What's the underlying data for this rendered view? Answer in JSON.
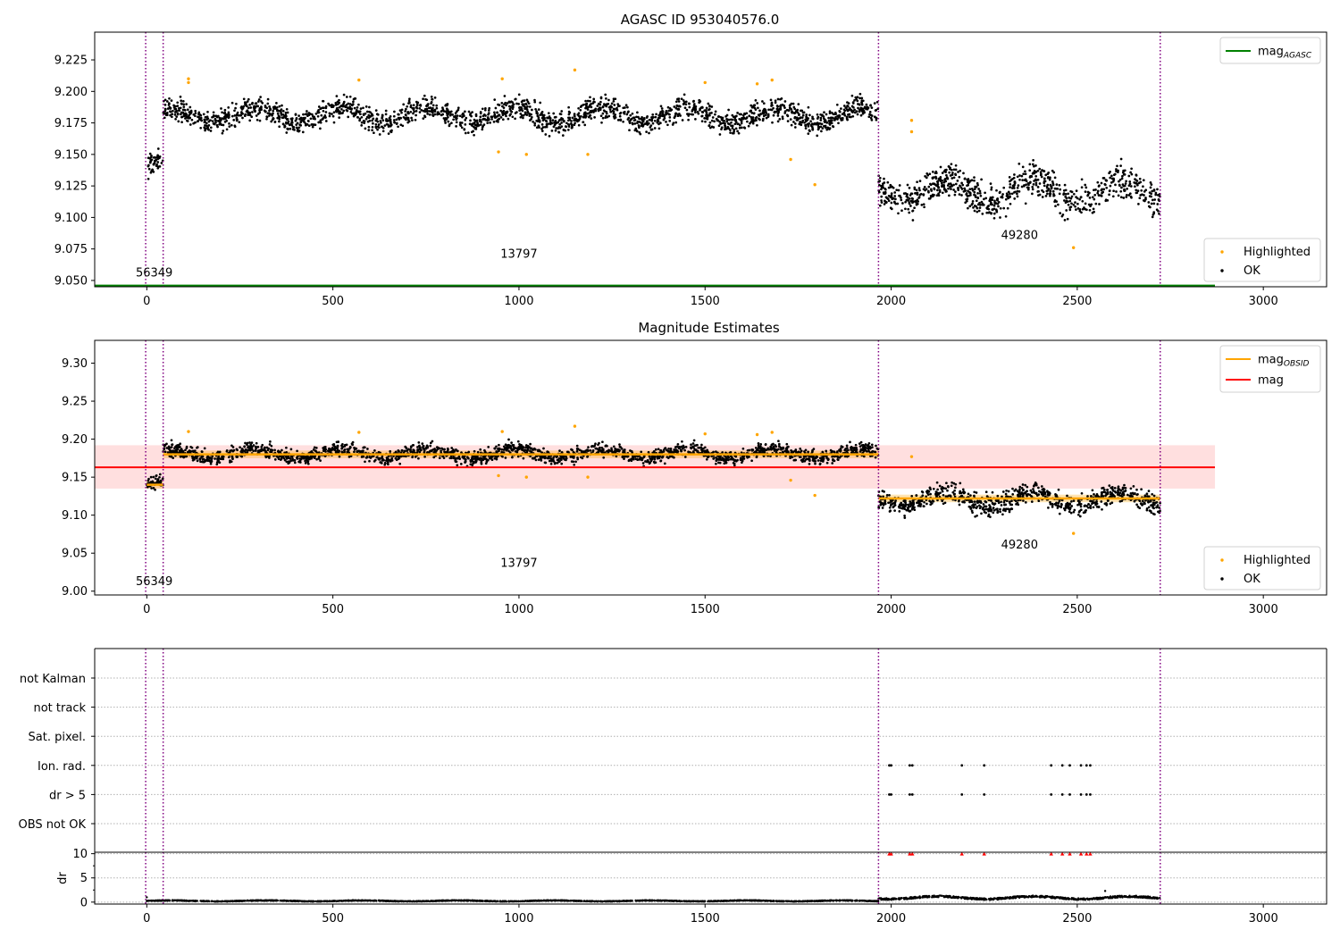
{
  "chart_data": [
    {
      "id": "agasc",
      "type": "scatter",
      "title": "AGASC ID 953040576.0",
      "xlim": [
        -140,
        3170
      ],
      "ylim": [
        9.045,
        9.247
      ],
      "xticks": [
        0,
        500,
        1000,
        1500,
        2000,
        2500,
        3000
      ],
      "xtick_labels": [
        "0",
        "500",
        "1000",
        "1500",
        "2000",
        "2500",
        "3000"
      ],
      "yticks": [
        9.05,
        9.075,
        9.1,
        9.125,
        9.15,
        9.175,
        9.2,
        9.225
      ],
      "ytick_labels": [
        "9.050",
        "9.075",
        "9.100",
        "9.125",
        "9.150",
        "9.175",
        "9.200",
        "9.225"
      ],
      "obs_boundaries": [
        -3,
        44,
        1966,
        2723
      ],
      "obs_labels": [
        {
          "text": "56349",
          "x": 20,
          "y": 9.053
        },
        {
          "text": "13797",
          "x": 1000,
          "y": 9.068
        },
        {
          "text": "49280",
          "x": 2345,
          "y": 9.083
        }
      ],
      "lines": [
        {
          "name": "mag_AGASC",
          "color": "#008000",
          "value": 9.046,
          "x0": -140,
          "x1": 2870
        }
      ],
      "segments": [
        {
          "x0": 0,
          "x1": 44,
          "center": 9.14,
          "spread": 0.01
        },
        {
          "x0": 44,
          "x1": 1966,
          "center": 9.181,
          "spread": 0.01
        },
        {
          "x0": 1966,
          "x1": 2723,
          "center": 9.121,
          "spread": 0.015
        }
      ],
      "highlighted": [
        [
          112,
          9.21
        ],
        [
          112,
          9.207
        ],
        [
          570,
          9.209
        ],
        [
          945,
          9.152
        ],
        [
          955,
          9.21
        ],
        [
          1020,
          9.15
        ],
        [
          1150,
          9.217
        ],
        [
          1185,
          9.15
        ],
        [
          1500,
          9.207
        ],
        [
          1640,
          9.206
        ],
        [
          1680,
          9.209
        ],
        [
          1730,
          9.146
        ],
        [
          1795,
          9.126
        ],
        [
          2055,
          9.177
        ],
        [
          2055,
          9.168
        ],
        [
          2490,
          9.076
        ]
      ],
      "legend": {
        "position": "upper-right and lower-right",
        "line_entries": [
          {
            "base": "mag",
            "sub": "AGASC",
            "color": "#008000"
          }
        ],
        "marker_entries": [
          {
            "label": "Highlighted",
            "color": "#ffa500"
          },
          {
            "label": "OK",
            "color": "#000000"
          }
        ]
      }
    },
    {
      "id": "magnitude",
      "type": "scatter",
      "title": "Magnitude Estimates",
      "xlim": [
        -140,
        3170
      ],
      "ylim": [
        8.995,
        9.33
      ],
      "xticks": [
        0,
        500,
        1000,
        1500,
        2000,
        2500,
        3000
      ],
      "xtick_labels": [
        "0",
        "500",
        "1000",
        "1500",
        "2000",
        "2500",
        "3000"
      ],
      "yticks": [
        9.0,
        9.05,
        9.1,
        9.15,
        9.2,
        9.25,
        9.3
      ],
      "ytick_labels": [
        "9.00",
        "9.05",
        "9.10",
        "9.15",
        "9.20",
        "9.25",
        "9.30"
      ],
      "obs_boundaries": [
        -3,
        44,
        1966,
        2723
      ],
      "obs_labels": [
        {
          "text": "56349",
          "x": 20,
          "y": 9.008
        },
        {
          "text": "13797",
          "x": 1000,
          "y": 9.032
        },
        {
          "text": "49280",
          "x": 2345,
          "y": 9.056
        }
      ],
      "mag_line": {
        "value": 9.163,
        "band": [
          9.135,
          9.192
        ],
        "x0": -140,
        "x1": 2870,
        "color": "#ff0000",
        "band_color": "#ffdcdc"
      },
      "obsid_mags": [
        {
          "x0": 0,
          "x1": 44,
          "value": 9.14,
          "band": [
            9.135,
            9.145
          ]
        },
        {
          "x0": 44,
          "x1": 1966,
          "value": 9.18,
          "band": [
            9.175,
            9.185
          ]
        },
        {
          "x0": 1966,
          "x1": 2723,
          "value": 9.122,
          "band": [
            9.117,
            9.127
          ]
        }
      ],
      "segments": [
        {
          "x0": 0,
          "x1": 44,
          "center": 9.14,
          "spread": 0.01
        },
        {
          "x0": 44,
          "x1": 1966,
          "center": 9.181,
          "spread": 0.01
        },
        {
          "x0": 1966,
          "x1": 2723,
          "center": 9.121,
          "spread": 0.015
        }
      ],
      "highlighted": [
        [
          112,
          9.21
        ],
        [
          570,
          9.209
        ],
        [
          945,
          9.152
        ],
        [
          955,
          9.21
        ],
        [
          1020,
          9.15
        ],
        [
          1150,
          9.217
        ],
        [
          1185,
          9.15
        ],
        [
          1500,
          9.207
        ],
        [
          1640,
          9.206
        ],
        [
          1680,
          9.209
        ],
        [
          1730,
          9.146
        ],
        [
          1795,
          9.126
        ],
        [
          2055,
          9.177
        ],
        [
          2490,
          9.076
        ]
      ],
      "legend": {
        "position": "upper-right and lower-right",
        "line_entries": [
          {
            "base": "mag",
            "sub": "OBSID",
            "color": "#ffa500"
          },
          {
            "base": "mag",
            "sub": "",
            "color": "#ff0000"
          }
        ],
        "marker_entries": [
          {
            "label": "Highlighted",
            "color": "#ffa500"
          },
          {
            "label": "OK",
            "color": "#000000"
          }
        ]
      }
    },
    {
      "id": "flags",
      "type": "scatter",
      "xlim": [
        -140,
        3170
      ],
      "categories": [
        "not Kalman",
        "not track",
        "Sat. pixel.",
        "Ion. rad.",
        "dr > 5",
        "OBS not OK"
      ],
      "flag_points": {
        "Ion. rad.": [
          1995,
          2000,
          2050,
          2057,
          2190,
          2250,
          2430,
          2460,
          2480,
          2510,
          2525,
          2535
        ],
        "dr > 5": [
          1995,
          2000,
          2050,
          2057,
          2190,
          2250,
          2430,
          2460,
          2480,
          2510,
          2525,
          2535
        ]
      },
      "obs_boundaries": [
        -3,
        44,
        1966,
        2723
      ]
    },
    {
      "id": "dr",
      "type": "scatter",
      "ylabel": "dr",
      "xlim": [
        -140,
        3170
      ],
      "ylim": [
        -0.4,
        10.3
      ],
      "xticks": [
        0,
        500,
        1000,
        1500,
        2000,
        2500,
        3000
      ],
      "xtick_labels": [
        "0",
        "500",
        "1000",
        "1500",
        "2000",
        "2500",
        "3000"
      ],
      "yticks": [
        0,
        5,
        10
      ],
      "ytick_labels": [
        "0",
        "5",
        "10"
      ],
      "segments": [
        {
          "x0": 0,
          "x1": 1966,
          "center": 0.25,
          "spread": 0.12
        },
        {
          "x0": 1966,
          "x1": 2723,
          "center": 0.9,
          "spread": 0.35
        }
      ],
      "outliers": [
        [
          0,
          1.0
        ],
        [
          2575,
          2.3
        ]
      ],
      "clipped_points": [
        1995,
        2000,
        2050,
        2057,
        2190,
        2250,
        2430,
        2460,
        2480,
        2510,
        2525,
        2535
      ],
      "clipped_value": 10,
      "obs_boundaries": [
        -3,
        44,
        1966,
        2723
      ]
    }
  ],
  "colors": {
    "ok": "#000000",
    "highlighted": "#ffa500",
    "boundary": "#800080",
    "clipped": "#ff0000",
    "grid": "#b0b0b0"
  }
}
